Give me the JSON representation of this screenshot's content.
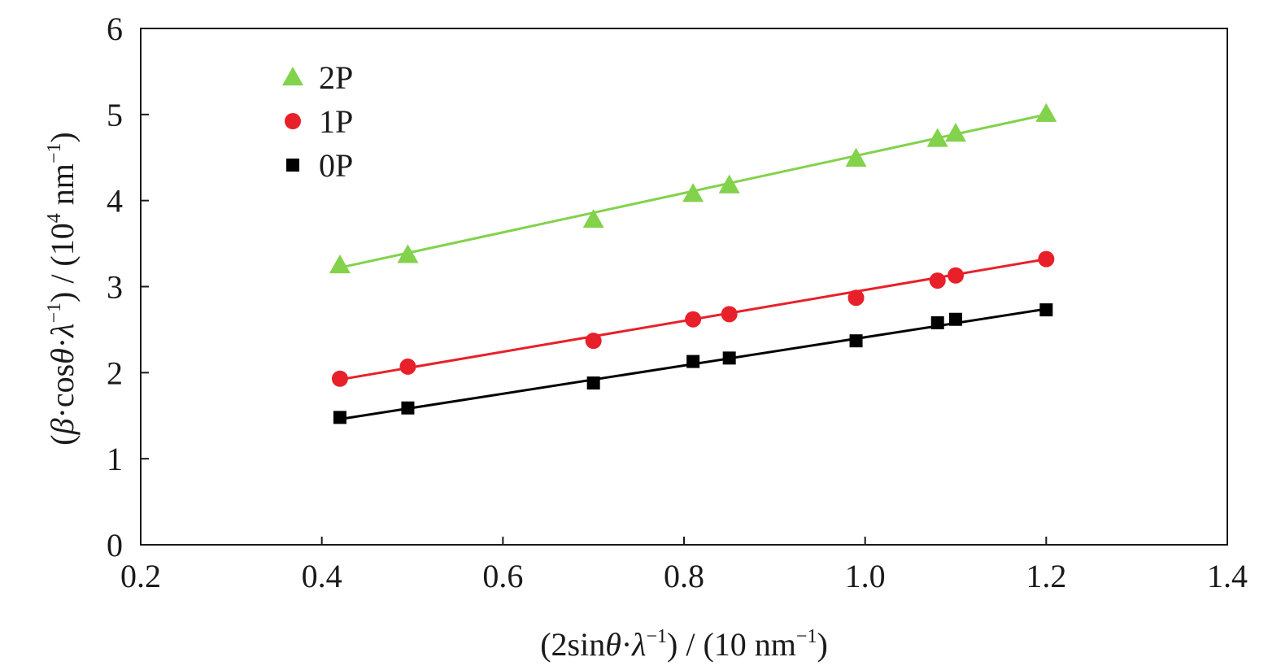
{
  "chart_data": {
    "type": "scatter",
    "title": "",
    "xlabel": {
      "pre": "(2sin",
      "theta": "θ",
      "dot": "·",
      "lambda": "λ",
      "exp": "−1",
      "post": ") / (10 nm",
      "post_exp": "−1",
      "close": ")"
    },
    "ylabel": {
      "pre": "(",
      "beta": "β",
      "dot1": "·cos",
      "theta": "θ",
      "dot2": "·",
      "lambda": "λ",
      "exp": "−1",
      "mid": ") / (10",
      "mid_exp": "4",
      "unit": " nm",
      "unit_exp": "−1",
      "close": ")"
    },
    "xlim": [
      0.2,
      1.4
    ],
    "ylim": [
      0,
      6
    ],
    "xticks": [
      "0.2",
      "0.4",
      "0.6",
      "0.8",
      "1.0",
      "1.2",
      "1.4"
    ],
    "yticks": [
      "0",
      "1",
      "2",
      "3",
      "4",
      "5",
      "6"
    ],
    "grid": false,
    "legend_position": "top-left",
    "x": [
      0.42,
      0.495,
      0.7,
      0.81,
      0.85,
      0.99,
      1.08,
      1.1,
      1.2
    ],
    "series": [
      {
        "name": "2P",
        "marker": "triangle",
        "color": "#82d24b",
        "values": [
          3.25,
          3.37,
          3.78,
          4.08,
          4.18,
          4.49,
          4.72,
          4.78,
          5.01
        ],
        "fit": [
          3.22,
          5.0
        ]
      },
      {
        "name": "1P",
        "marker": "circle",
        "color": "#e8202a",
        "values": [
          1.93,
          2.07,
          2.37,
          2.62,
          2.68,
          2.87,
          3.07,
          3.13,
          3.32
        ],
        "fit": [
          1.92,
          3.32
        ]
      },
      {
        "name": "0P",
        "marker": "square",
        "color": "#000000",
        "values": [
          1.48,
          1.59,
          1.88,
          2.13,
          2.17,
          2.37,
          2.58,
          2.62,
          2.73
        ],
        "fit": [
          1.46,
          2.74
        ]
      }
    ]
  }
}
